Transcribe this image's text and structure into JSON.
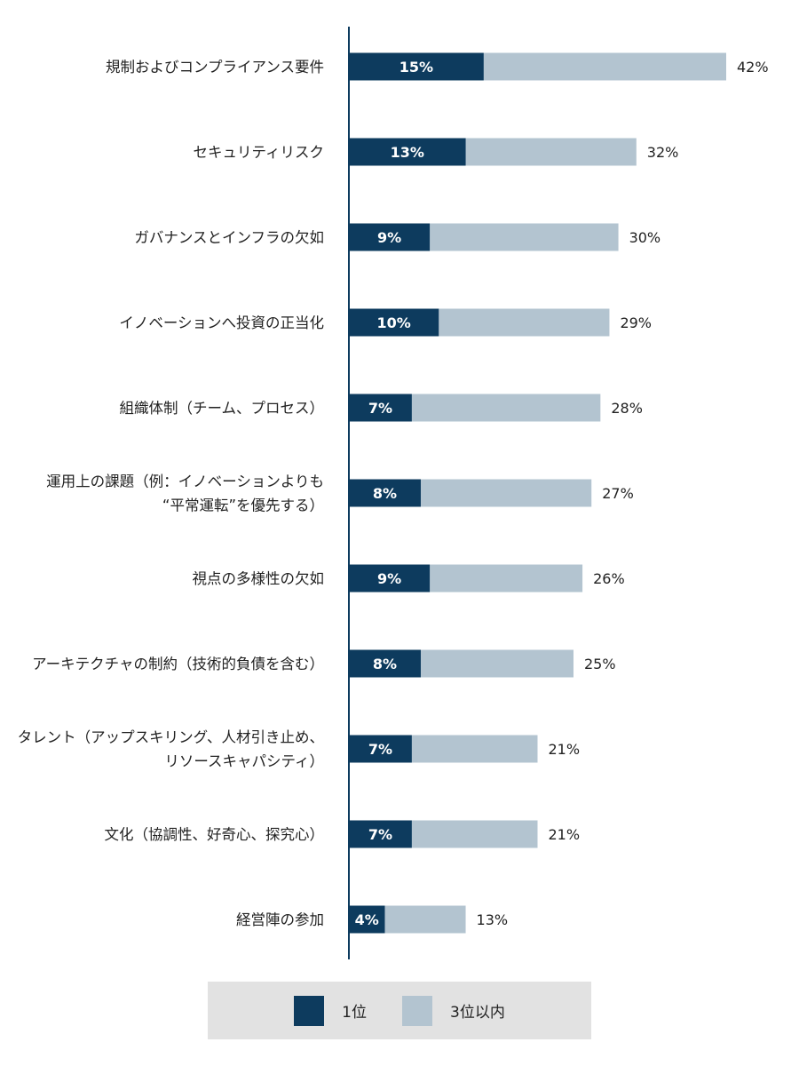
{
  "chart_data": {
    "type": "bar",
    "orientation": "horizontal",
    "stacked": "overlay",
    "categories": [
      [
        "規制およびコンプライアンス要件"
      ],
      [
        "セキュリティリスク"
      ],
      [
        "ガバナンスとインフラの欠如"
      ],
      [
        "イノベーションへ投資の正当化"
      ],
      [
        "組織体制（チーム、プロセス）"
      ],
      [
        "運用上の課題（例：イノベーションよりも",
        "“平常運転”を優先する）"
      ],
      [
        "視点の多様性の欠如"
      ],
      [
        "アーキテクチャの制約（技術的負債を含む）"
      ],
      [
        "タレント（アップスキリング、人材引き止め、",
        "リソースキャパシティ）"
      ],
      [
        "文化（協調性、好奇心、探究心）"
      ],
      [
        "経営陣の参加"
      ]
    ],
    "series": [
      {
        "name": "1位",
        "color": "#0d3b5e",
        "values": [
          15,
          13,
          9,
          10,
          7,
          8,
          9,
          8,
          7,
          7,
          4
        ]
      },
      {
        "name": "3位以内",
        "color": "#b3c4d0",
        "values": [
          42,
          32,
          30,
          29,
          28,
          27,
          26,
          25,
          21,
          21,
          13
        ]
      }
    ],
    "value_suffix": "%",
    "xlim": [
      0,
      42
    ],
    "grid": false,
    "legend_position": "bottom"
  },
  "legend": {
    "items": [
      {
        "label": "1位",
        "color": "#0d3b5e"
      },
      {
        "label": "3位以内",
        "color": "#b3c4d0"
      }
    ]
  }
}
